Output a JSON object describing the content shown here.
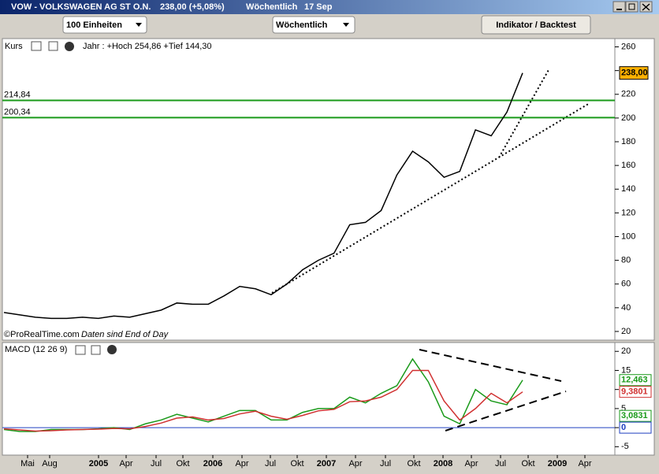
{
  "window": {
    "title": "VOW - VOLKSWAGEN AG ST O.N.",
    "quote": "238,00 (+5,08%)",
    "period": "Wöchentlich",
    "date": "17 Sep"
  },
  "toolbar": {
    "units": "100 Einheiten",
    "interval": "Wöchentlich",
    "button": "Indikator / Backtest"
  },
  "price_panel": {
    "type": "line",
    "label": "Kurs",
    "info": "Jahr : +Hoch 254,86 +Tief 144,30",
    "watermark": "©ProRealTime.com",
    "note": "Daten sind End of Day",
    "ylim": [
      14,
      265
    ],
    "yticks": [
      20,
      40,
      60,
      80,
      100,
      120,
      140,
      160,
      180,
      200,
      220,
      240,
      260
    ],
    "levels": [
      {
        "value": 214.84,
        "label": "214,84"
      },
      {
        "value": 200.34,
        "label": "200,34"
      }
    ],
    "last": {
      "value": 238,
      "label": "238,00"
    },
    "values": [
      36,
      34,
      32,
      31,
      31,
      32,
      31,
      33,
      32,
      35,
      38,
      44,
      43,
      43,
      50,
      58,
      56,
      51,
      60,
      72,
      80,
      86,
      110,
      112,
      122,
      152,
      172,
      163,
      150,
      155,
      190,
      185,
      205,
      238
    ]
  },
  "macd_panel": {
    "type": "line",
    "label": "MACD (12 26 9)",
    "ylim": [
      -7.2,
      21.7
    ],
    "yticks": [
      -5,
      0,
      5,
      10,
      15,
      20
    ],
    "series": [
      {
        "name": "MACD",
        "color": "#1a9a1a",
        "values": [
          -0.5,
          -1,
          -1,
          -0.5,
          -0.5,
          -0.5,
          -0.3,
          0,
          -0.5,
          1,
          2,
          3.5,
          2.5,
          1.5,
          3,
          4.5,
          4.5,
          2,
          2,
          4,
          5,
          5,
          8,
          6.5,
          9,
          11,
          18,
          12,
          3,
          1,
          10,
          7,
          6,
          12.463
        ]
      },
      {
        "name": "Signal",
        "color": "#d03030",
        "values": [
          -0.3,
          -0.6,
          -0.9,
          -0.8,
          -0.6,
          -0.5,
          -0.4,
          -0.2,
          -0.3,
          0.3,
          1.2,
          2.5,
          2.8,
          2,
          2.4,
          3.6,
          4.3,
          3,
          2.2,
          3.2,
          4.4,
          4.8,
          6.8,
          7,
          8,
          10,
          15,
          15,
          7,
          2,
          5,
          9,
          6.5,
          9.3801
        ]
      }
    ],
    "last": [
      {
        "value": 12.463,
        "label": "12,463",
        "color": "#1a9a1a"
      },
      {
        "value": 9.3801,
        "label": "9,3801",
        "color": "#d03030"
      },
      {
        "value": 3.0831,
        "label": "3,0831",
        "color": "#1a9a1a"
      },
      {
        "value": 0,
        "label": "0",
        "color": "#2040c0"
      }
    ]
  },
  "x_axis": {
    "labels": [
      "Mai",
      "Aug",
      "2005",
      "Apr",
      "Jul",
      "Okt",
      "2006",
      "Apr",
      "Jul",
      "Okt",
      "2007",
      "Apr",
      "Jul",
      "Okt",
      "2008",
      "Apr",
      "Jul",
      "Okt",
      "2009",
      "Apr"
    ]
  }
}
